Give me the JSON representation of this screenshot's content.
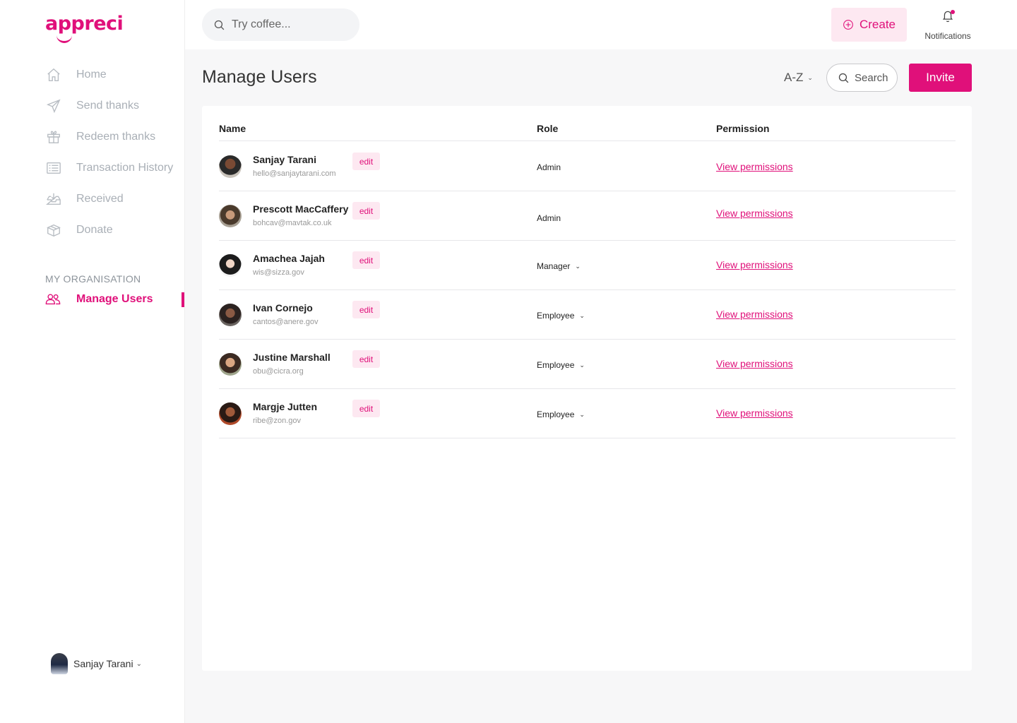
{
  "brand": {
    "name": "appreci",
    "accent": "#e0107a"
  },
  "sidebar": {
    "items": [
      {
        "label": "Home",
        "icon": "home-icon"
      },
      {
        "label": "Send thanks",
        "icon": "send-icon"
      },
      {
        "label": "Redeem thanks",
        "icon": "gift-icon"
      },
      {
        "label": "Transaction History",
        "icon": "list-icon"
      },
      {
        "label": "Received",
        "icon": "inbox-icon"
      },
      {
        "label": "Donate",
        "icon": "box-icon"
      }
    ],
    "section_label": "MY ORGANISATION",
    "active_item": {
      "label": "Manage Users",
      "icon": "users-icon"
    },
    "user": {
      "name": "Sanjay Tarani"
    }
  },
  "topbar": {
    "search_placeholder": "Try coffee...",
    "create_label": "Create",
    "notifications_label": "Notifications"
  },
  "page": {
    "title": "Manage Users",
    "sort_label": "A-Z",
    "search_label": "Search",
    "invite_label": "Invite"
  },
  "table": {
    "columns": [
      "Name",
      "Role",
      "Permission"
    ],
    "rows": [
      {
        "name": "Sanjay Tarani",
        "email": "hello@sanjaytarani.com",
        "edit": "edit",
        "role": "Admin",
        "permission": "View permissions"
      },
      {
        "name": "Prescott MacCaffery",
        "email": "bohcav@mavtak.co.uk",
        "edit": "edit",
        "role": "Admin",
        "permission": "View permissions"
      },
      {
        "name": "Amachea Jajah",
        "email": "wis@sizza.gov",
        "edit": "edit",
        "role": "Manager",
        "permission": "View permissions"
      },
      {
        "name": "Ivan Cornejo",
        "email": "cantos@anere.gov",
        "edit": "edit",
        "role": "Employee",
        "permission": "View permissions"
      },
      {
        "name": "Justine Marshall",
        "email": "obu@cicra.org",
        "edit": "edit",
        "role": "Employee",
        "permission": "View permissions"
      },
      {
        "name": "Margje Jutten",
        "email": "ribe@zon.gov",
        "edit": "edit",
        "role": "Employee",
        "permission": "View permissions"
      }
    ]
  }
}
